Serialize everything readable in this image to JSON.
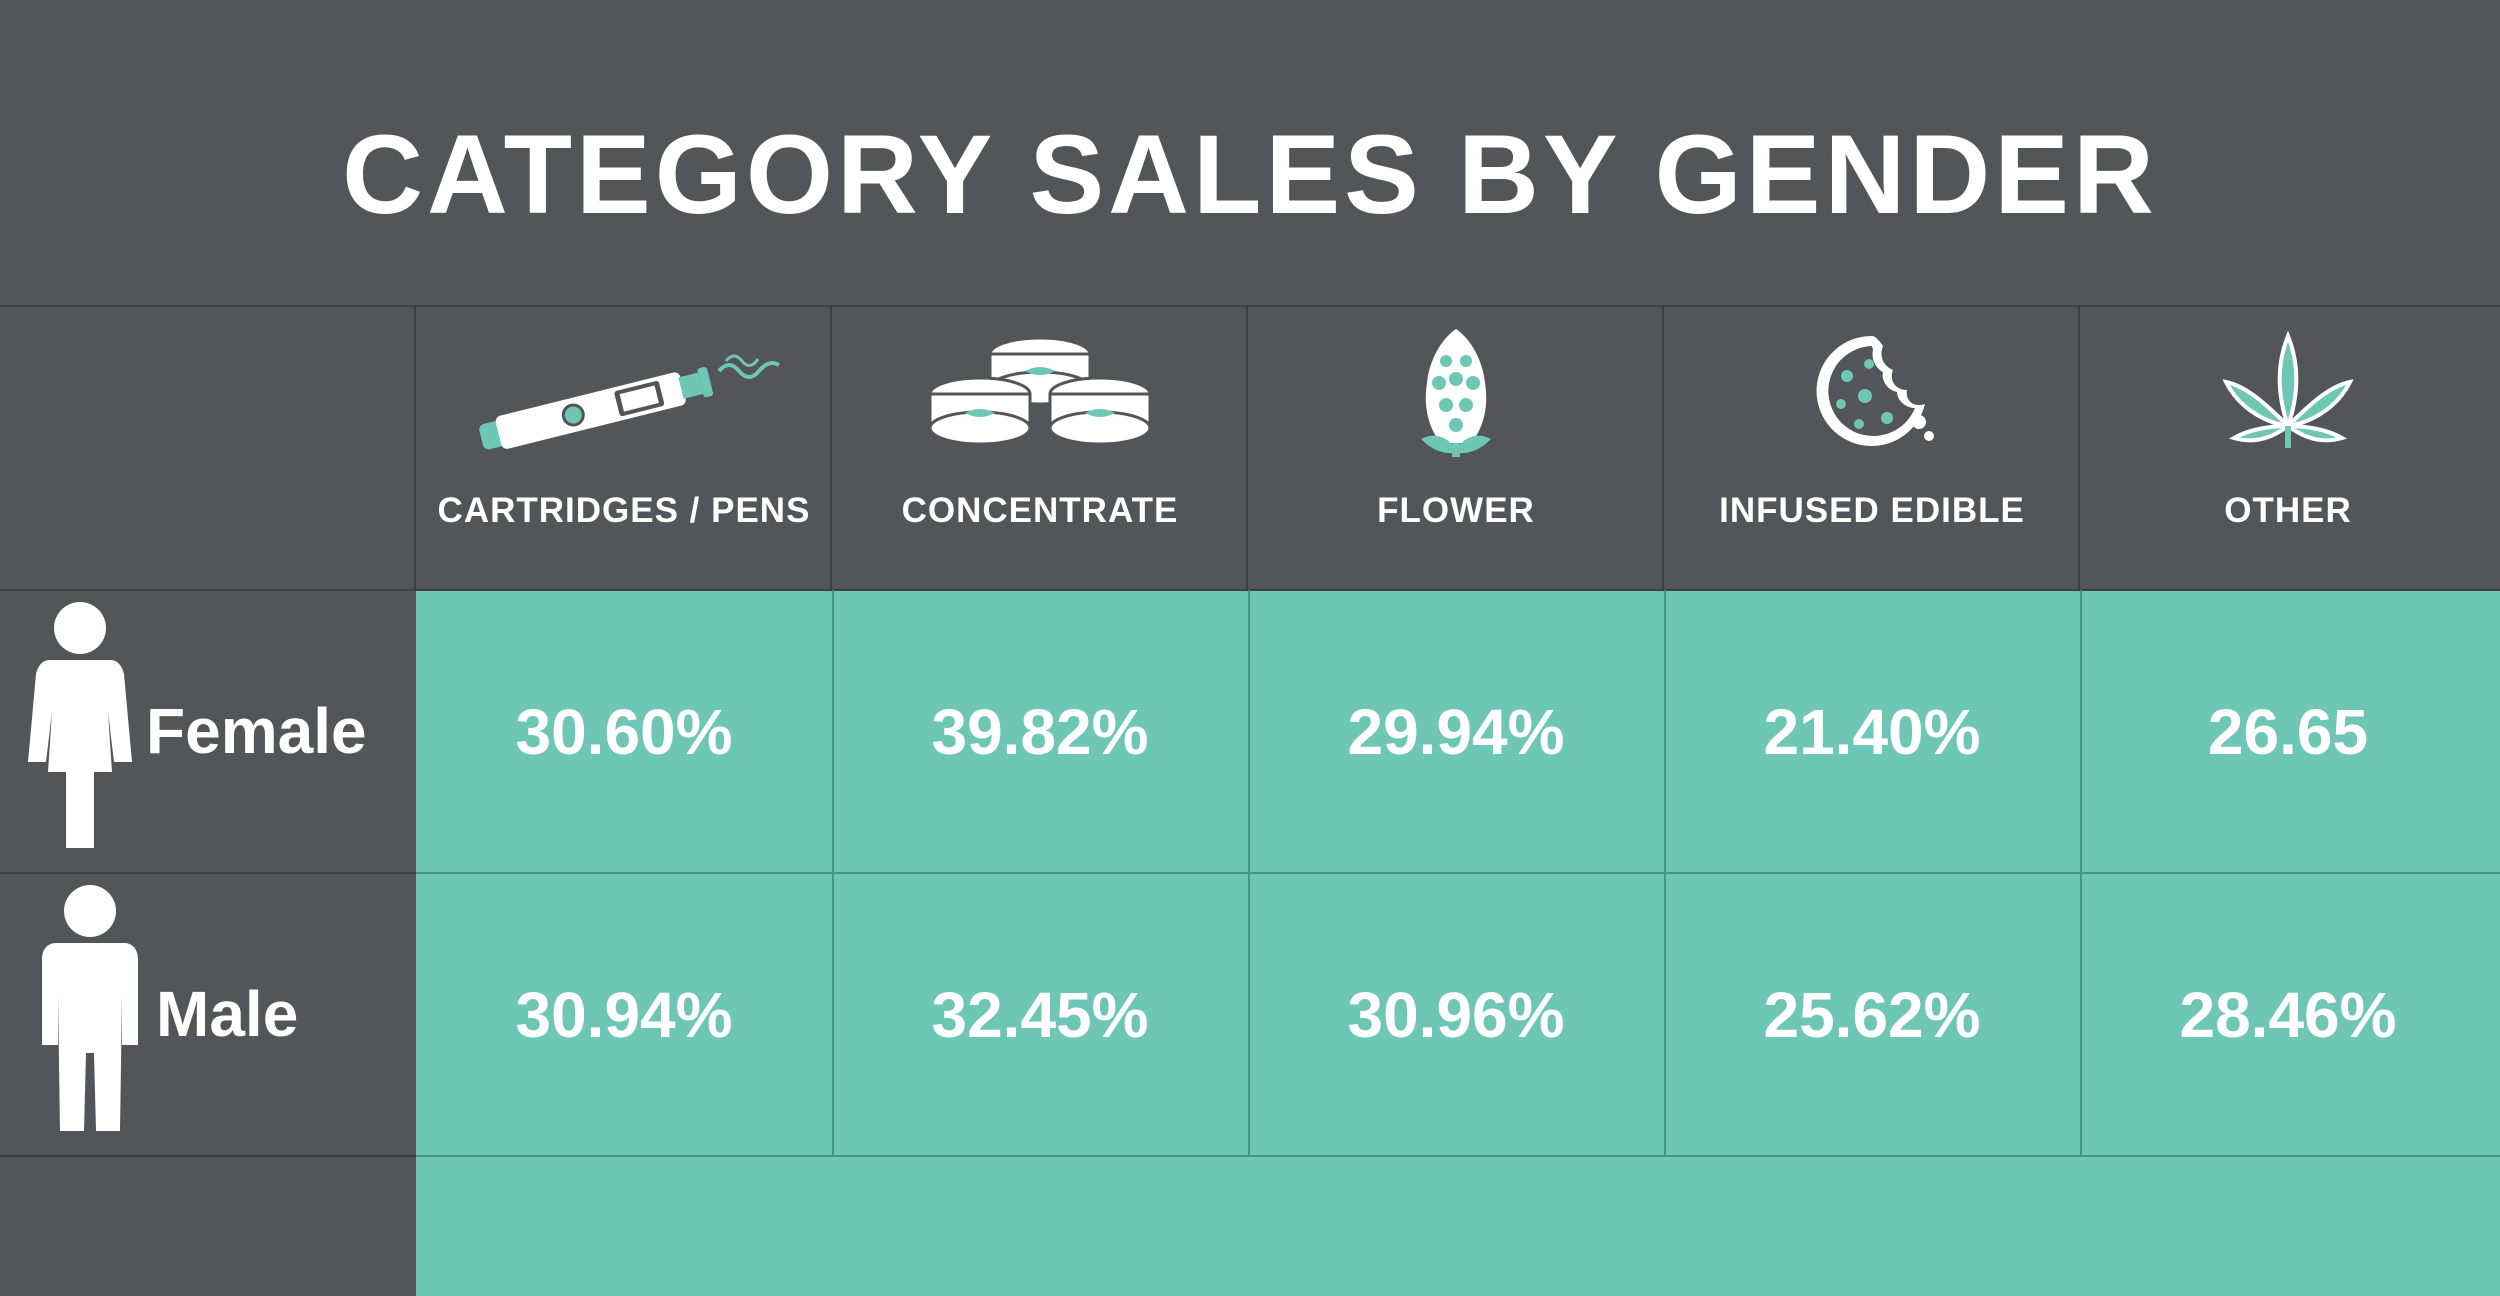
{
  "title": "CATEGORY SALES BY GENDER",
  "colors": {
    "background": "#545559",
    "accent": "#6ec7b5",
    "text": "#ffffff"
  },
  "columns": [
    {
      "label": "CARTRIDGES / PENS",
      "icon": "vape-pen-icon"
    },
    {
      "label": "CONCENTRATE",
      "icon": "concentrate-jars-icon"
    },
    {
      "label": "FLOWER",
      "icon": "cannabis-flower-icon"
    },
    {
      "label": "INFUSED EDIBLE",
      "icon": "cookie-icon"
    },
    {
      "label": "OTHER",
      "icon": "cannabis-leaf-icon"
    }
  ],
  "rows": [
    {
      "label": "Female",
      "icon": "female-figure-icon",
      "values": [
        "30.60%",
        "39.82%",
        "29.94%",
        "21.40%",
        "26.65"
      ]
    },
    {
      "label": "Male",
      "icon": "male-figure-icon",
      "values": [
        "30.94%",
        "32.45%",
        "30.96%",
        "25.62%",
        "28.46%"
      ]
    }
  ],
  "chart_data": {
    "type": "table",
    "title": "CATEGORY SALES BY GENDER",
    "columns": [
      "CARTRIDGES / PENS",
      "CONCENTRATE",
      "FLOWER",
      "INFUSED EDIBLE",
      "OTHER"
    ],
    "rows": [
      {
        "name": "Female",
        "values": [
          "30.60%",
          "39.82%",
          "29.94%",
          "21.40%",
          "26.65"
        ]
      },
      {
        "name": "Male",
        "values": [
          "30.94%",
          "32.45%",
          "30.96%",
          "25.62%",
          "28.46%"
        ]
      }
    ]
  }
}
